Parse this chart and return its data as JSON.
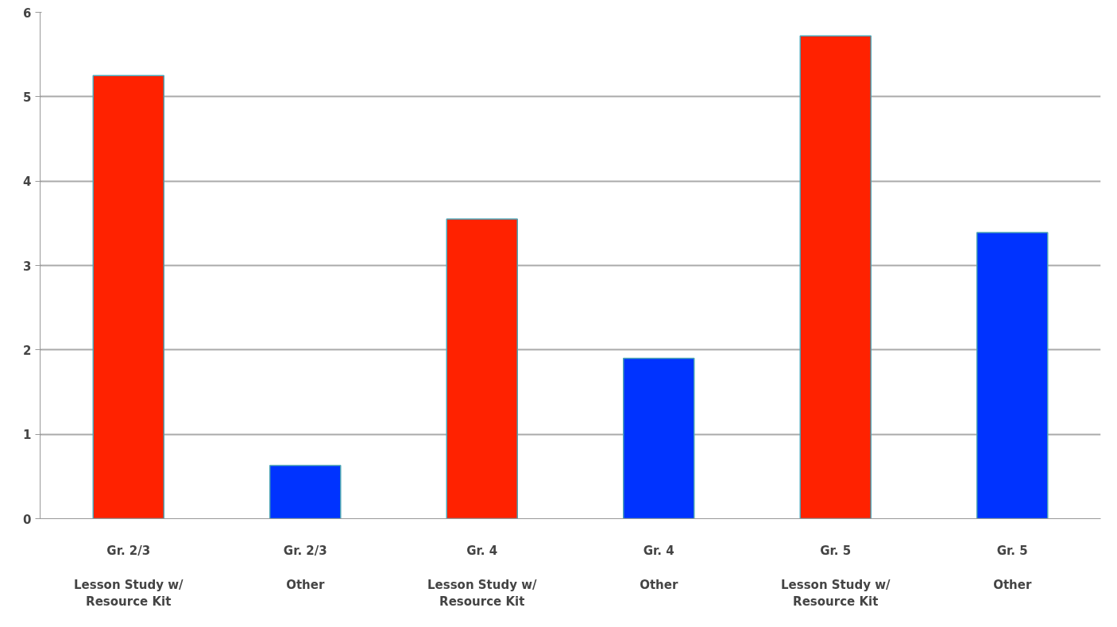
{
  "chart_data": {
    "type": "bar",
    "categories": [
      "Gr. 2/3\n\nLesson Study w/\nResource Kit",
      "Gr. 2/3\n\nOther",
      "Gr. 4\n\nLesson Study w/\nResource Kit",
      "Gr. 4\n\nOther",
      "Gr. 5\n\nLesson Study w/\nResource Kit",
      "Gr. 5\n\nOther"
    ],
    "values": [
      5.25,
      0.63,
      3.55,
      1.9,
      5.72,
      3.39
    ],
    "colors": [
      "#ff2200",
      "#0033ff",
      "#ff2200",
      "#0033ff",
      "#ff2200",
      "#0033ff"
    ],
    "ylim": [
      0,
      6
    ],
    "yticks": [
      0,
      1,
      2,
      3,
      4,
      5,
      6
    ],
    "grid": "y"
  }
}
